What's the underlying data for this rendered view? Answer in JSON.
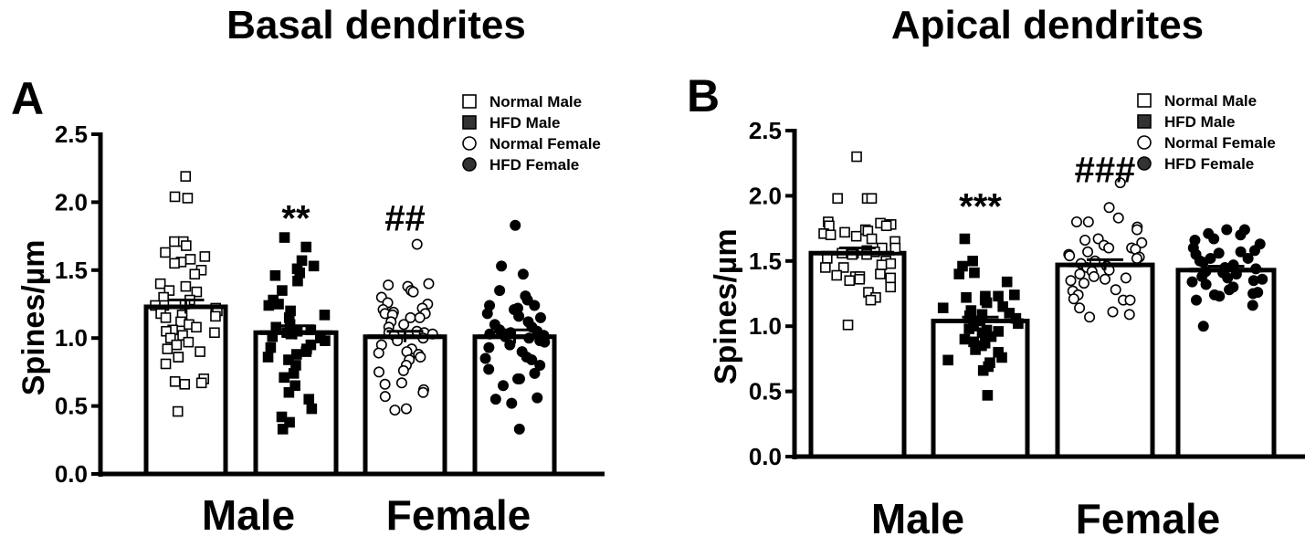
{
  "chart_data": [
    {
      "type": "bar",
      "panel": "A",
      "title": "Basal dendrites",
      "ylabel": "Spines/µm",
      "ylim": [
        0,
        2.5
      ],
      "yticks": [
        "0.0",
        "0.5",
        "1.0",
        "1.5",
        "2.0",
        "2.5"
      ],
      "group_labels": [
        "Male",
        "Female"
      ],
      "legend": [
        "Normal Male",
        "HFD Male",
        "Normal Female",
        "HFD Female"
      ],
      "legend_position": "top-right",
      "series": [
        {
          "name": "Normal Male",
          "mean": 1.23,
          "sem": 0.05,
          "marker": "open-square",
          "points": [
            2.19,
            2.03,
            2.04,
            1.71,
            1.71,
            1.68,
            1.63,
            1.6,
            1.58,
            1.56,
            1.55,
            1.5,
            1.47,
            1.4,
            1.38,
            1.35,
            1.34,
            1.3,
            1.28,
            1.25,
            1.24,
            1.24,
            1.22,
            1.2,
            1.18,
            1.17,
            1.16,
            1.15,
            1.12,
            1.1,
            1.08,
            1.06,
            1.05,
            1.04,
            1.02,
            1.0,
            0.97,
            0.95,
            0.92,
            0.9,
            0.86,
            0.86,
            0.81,
            0.7,
            0.68,
            0.67,
            0.66,
            0.46
          ]
        },
        {
          "name": "HFD Male",
          "mean": 1.04,
          "sem": 0.05,
          "marker": "filled-square",
          "annotation": "**",
          "annotation_y": 1.98,
          "points": [
            1.74,
            1.67,
            1.57,
            1.53,
            1.51,
            1.48,
            1.46,
            1.42,
            1.35,
            1.28,
            1.25,
            1.24,
            1.2,
            1.17,
            1.15,
            1.1,
            1.08,
            1.06,
            1.05,
            1.04,
            1.03,
            1.01,
            1.0,
            0.98,
            0.95,
            0.93,
            0.92,
            0.9,
            0.88,
            0.86,
            0.84,
            0.8,
            0.74,
            0.71,
            0.65,
            0.6,
            0.55,
            0.48,
            0.42,
            0.38,
            0.33
          ]
        },
        {
          "name": "Normal Female",
          "mean": 1.01,
          "sem": 0.04,
          "marker": "open-circle",
          "annotation": "##",
          "annotation_y": 1.98,
          "points": [
            1.69,
            1.4,
            1.39,
            1.38,
            1.35,
            1.34,
            1.3,
            1.26,
            1.25,
            1.22,
            1.21,
            1.19,
            1.18,
            1.18,
            1.17,
            1.15,
            1.15,
            1.12,
            1.1,
            1.08,
            1.05,
            1.04,
            1.04,
            1.03,
            1.02,
            1.0,
            0.98,
            0.95,
            0.92,
            0.9,
            0.89,
            0.88,
            0.86,
            0.84,
            0.8,
            0.76,
            0.75,
            0.67,
            0.66,
            0.62,
            0.6,
            0.57,
            0.48,
            0.47
          ]
        },
        {
          "name": "HFD Female",
          "mean": 1.01,
          "sem": 0.05,
          "marker": "filled-circle",
          "points": [
            1.83,
            1.53,
            1.47,
            1.35,
            1.31,
            1.28,
            1.24,
            1.24,
            1.22,
            1.21,
            1.18,
            1.16,
            1.15,
            1.12,
            1.1,
            1.08,
            1.06,
            1.05,
            1.04,
            1.03,
            1.02,
            1.01,
            1.0,
            0.98,
            0.97,
            0.95,
            0.93,
            0.9,
            0.86,
            0.85,
            0.84,
            0.8,
            0.77,
            0.74,
            0.7,
            0.7,
            0.65,
            0.56,
            0.55,
            0.52,
            0.33
          ]
        }
      ]
    },
    {
      "type": "bar",
      "panel": "B",
      "title": "Apical dendrites",
      "ylabel": "Spines/µm",
      "ylim": [
        0,
        2.5
      ],
      "yticks": [
        "0.0",
        "0.5",
        "1.0",
        "1.5",
        "2.0",
        "2.5"
      ],
      "group_labels": [
        "Male",
        "Female"
      ],
      "legend": [
        "Normal Male",
        "HFD Male",
        "Normal Female",
        "HFD Female"
      ],
      "legend_position": "top-right",
      "series": [
        {
          "name": "Normal Male",
          "mean": 1.56,
          "sem": 0.04,
          "marker": "open-square",
          "points": [
            2.3,
            1.98,
            1.98,
            1.98,
            1.8,
            1.79,
            1.78,
            1.77,
            1.77,
            1.74,
            1.73,
            1.72,
            1.71,
            1.7,
            1.69,
            1.67,
            1.65,
            1.6,
            1.6,
            1.58,
            1.57,
            1.56,
            1.55,
            1.55,
            1.52,
            1.5,
            1.48,
            1.47,
            1.45,
            1.45,
            1.4,
            1.39,
            1.38,
            1.38,
            1.37,
            1.36,
            1.35,
            1.3,
            1.26,
            1.22,
            1.2,
            1.01
          ]
        },
        {
          "name": "HFD Male",
          "mean": 1.04,
          "sem": 0.03,
          "marker": "filled-square",
          "annotation": "***",
          "annotation_y": 2.02,
          "points": [
            1.67,
            1.5,
            1.46,
            1.41,
            1.4,
            1.34,
            1.24,
            1.23,
            1.23,
            1.22,
            1.2,
            1.18,
            1.15,
            1.14,
            1.12,
            1.1,
            1.09,
            1.08,
            1.06,
            1.04,
            1.02,
            1.0,
            0.98,
            0.97,
            0.96,
            0.95,
            0.92,
            0.9,
            0.88,
            0.87,
            0.85,
            0.82,
            0.8,
            0.76,
            0.74,
            0.72,
            0.69,
            0.66,
            0.47
          ]
        },
        {
          "name": "Normal Female",
          "mean": 1.47,
          "sem": 0.04,
          "marker": "open-circle",
          "annotation": "###",
          "annotation_y": 2.3,
          "points": [
            2.1,
            1.91,
            1.83,
            1.8,
            1.8,
            1.76,
            1.74,
            1.67,
            1.66,
            1.64,
            1.62,
            1.6,
            1.6,
            1.59,
            1.57,
            1.55,
            1.54,
            1.53,
            1.52,
            1.5,
            1.48,
            1.46,
            1.45,
            1.43,
            1.42,
            1.4,
            1.38,
            1.37,
            1.36,
            1.35,
            1.33,
            1.28,
            1.27,
            1.24,
            1.21,
            1.2,
            1.2,
            1.14,
            1.11,
            1.09,
            1.07
          ]
        },
        {
          "name": "HFD Female",
          "mean": 1.43,
          "sem": 0.03,
          "marker": "filled-circle",
          "points": [
            1.74,
            1.74,
            1.71,
            1.7,
            1.67,
            1.66,
            1.63,
            1.6,
            1.58,
            1.57,
            1.56,
            1.55,
            1.52,
            1.52,
            1.5,
            1.49,
            1.47,
            1.45,
            1.44,
            1.42,
            1.41,
            1.4,
            1.38,
            1.37,
            1.36,
            1.35,
            1.34,
            1.32,
            1.3,
            1.28,
            1.26,
            1.25,
            1.24,
            1.23,
            1.2,
            1.16,
            1.0
          ]
        }
      ]
    }
  ]
}
